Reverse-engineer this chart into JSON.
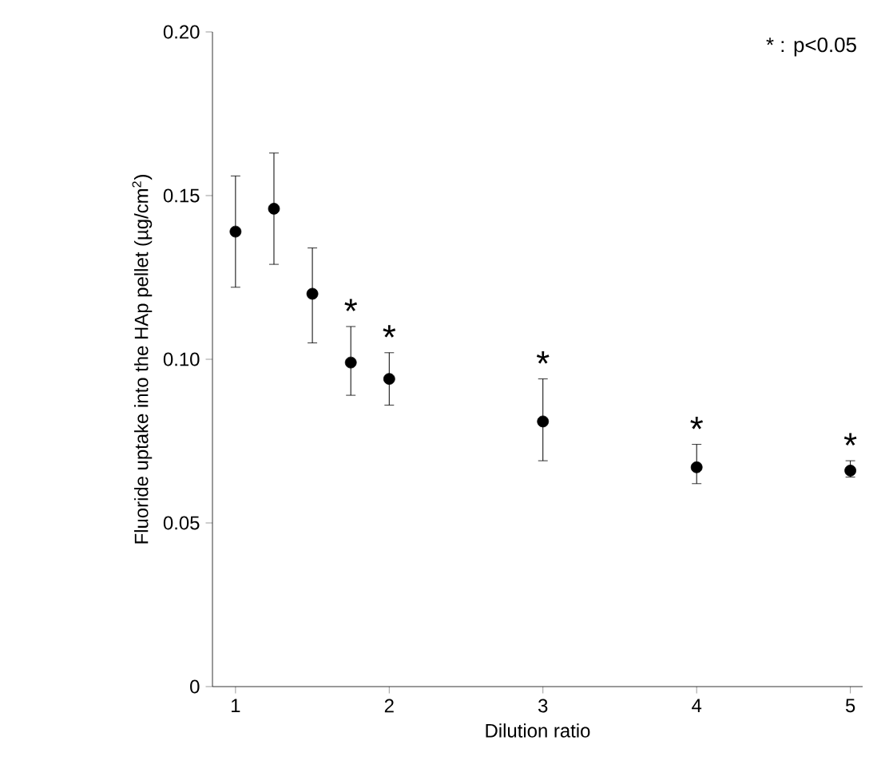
{
  "chart_data": {
    "type": "scatter",
    "xlabel": "Dilution ratio",
    "ylabel": "Fluoride uptake into the HAp pellet (µg/cm$^{2}$)",
    "x": [
      1,
      1.25,
      1.5,
      1.75,
      2,
      3,
      4,
      5
    ],
    "values": [
      0.139,
      0.146,
      0.12,
      0.099,
      0.094,
      0.081,
      0.067,
      0.066
    ],
    "errors": [
      [
        0.122,
        0.156
      ],
      [
        0.129,
        0.163
      ],
      [
        0.105,
        0.134
      ],
      [
        0.089,
        0.11
      ],
      [
        0.086,
        0.102
      ],
      [
        0.069,
        0.094
      ],
      [
        0.062,
        0.074
      ],
      [
        0.064,
        0.069
      ]
    ],
    "color": "#000000",
    "marker": "circle",
    "xlim": [
      0.85,
      5.08
    ],
    "ylim": [
      0,
      0.2
    ],
    "xticks": [
      1,
      2,
      3,
      4,
      5
    ],
    "yticks": [
      0,
      {
        "value": 0.05,
        "label": "0.05"
      },
      {
        "value": 0.1,
        "label": "0.10"
      },
      {
        "value": 0.15,
        "label": "0.15"
      },
      {
        "value": 0.2,
        "label": "0.20"
      }
    ],
    "grid": false,
    "annotations": [
      {
        "text": "*",
        "x": 1.75,
        "y": 0.11
      },
      {
        "text": "*",
        "x": 2,
        "y": 0.102
      },
      {
        "text": "*",
        "x": 3,
        "y": 0.094
      },
      {
        "text": "*",
        "x": 4,
        "y": 0.074
      },
      {
        "text": "*",
        "x": 5,
        "y": 0.069
      },
      "* : p<0.05"
    ]
  }
}
